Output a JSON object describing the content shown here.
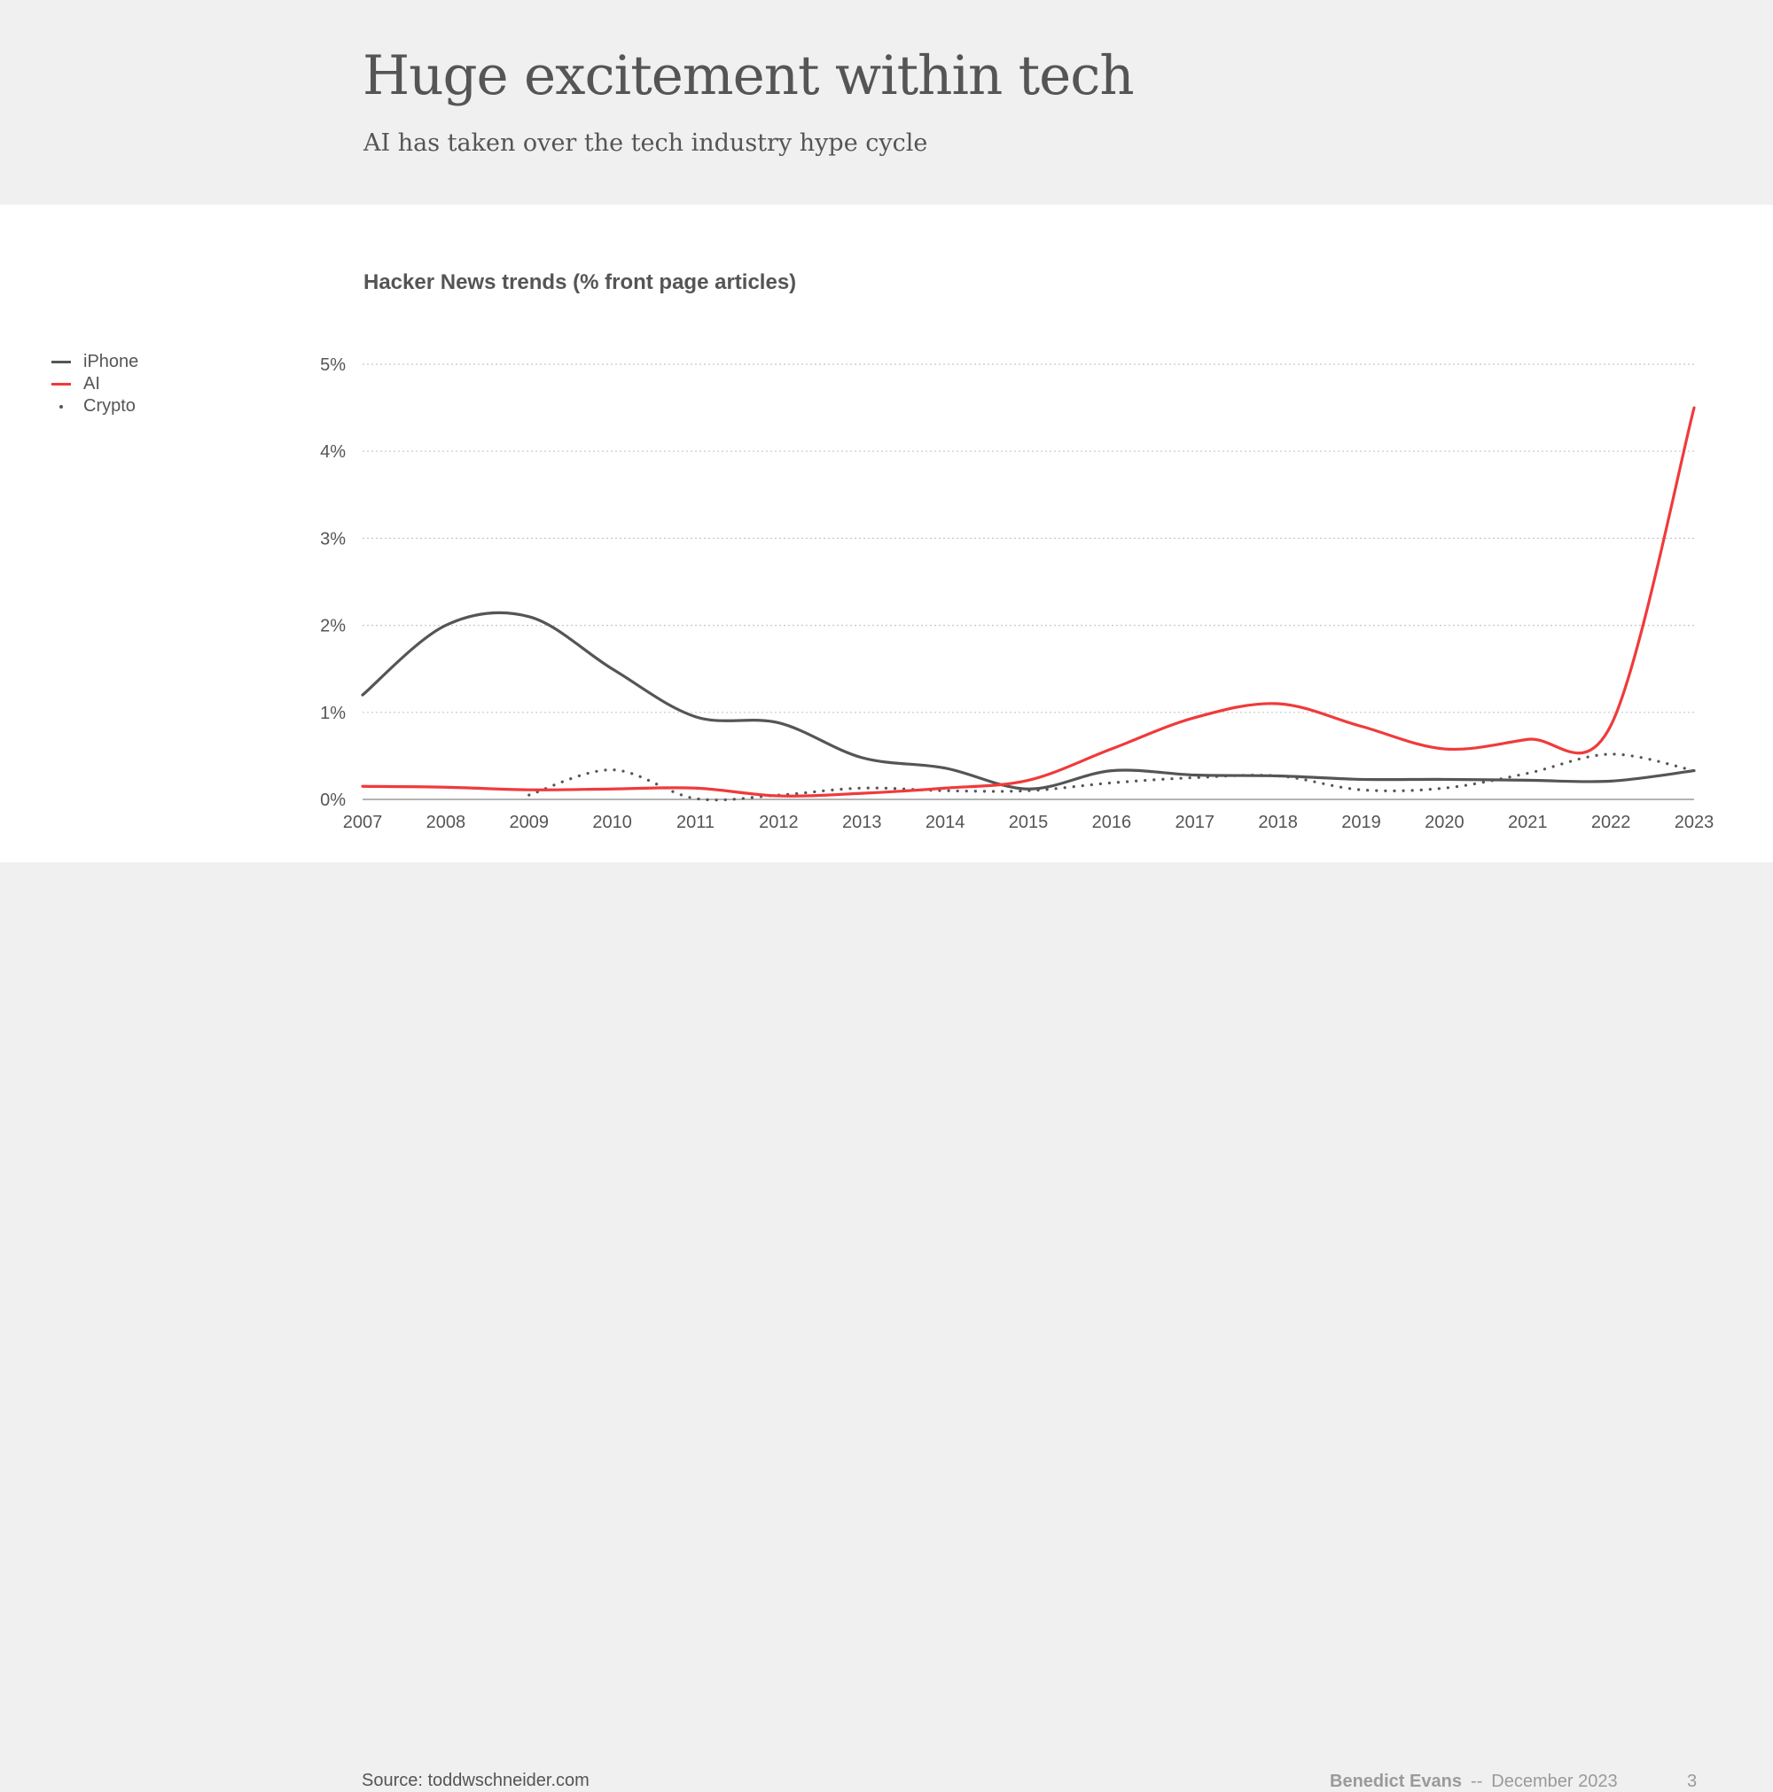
{
  "slide": {
    "title": "Huge excitement within tech",
    "subtitle": "AI has taken over the tech industry hype cycle",
    "source": "Source: toddwschneider.com",
    "author": "Benedict Evans",
    "separator": "--",
    "date": "December 2023",
    "page_number": "3"
  },
  "chart_data": {
    "type": "line",
    "title": "Hacker News trends (% front page articles)",
    "xlabel": "",
    "ylabel": "",
    "x": [
      2007,
      2008,
      2009,
      2010,
      2011,
      2012,
      2013,
      2014,
      2015,
      2016,
      2017,
      2018,
      2019,
      2020,
      2021,
      2022,
      2023
    ],
    "ylim": [
      0,
      5
    ],
    "yticks": [
      "0%",
      "1%",
      "2%",
      "3%",
      "4%",
      "5%"
    ],
    "ytick_values": [
      0,
      1,
      2,
      3,
      4,
      5
    ],
    "grid": true,
    "legend_position": "top-left",
    "series": [
      {
        "name": "iPhone",
        "color": "#555555",
        "style": "solid",
        "values": [
          1.2,
          2.0,
          2.1,
          1.5,
          0.95,
          0.88,
          0.48,
          0.36,
          0.12,
          0.33,
          0.28,
          0.27,
          0.23,
          0.23,
          0.22,
          0.21,
          0.33
        ]
      },
      {
        "name": "AI",
        "color": "#f03a3a",
        "style": "solid",
        "values": [
          0.15,
          0.14,
          0.11,
          0.12,
          0.13,
          0.04,
          0.07,
          0.13,
          0.22,
          0.58,
          0.94,
          1.1,
          0.84,
          0.58,
          0.69,
          0.85,
          4.5
        ]
      },
      {
        "name": "Crypto",
        "color": "#555555",
        "style": "dotted",
        "x": [
          2009,
          2010,
          2011,
          2012,
          2013,
          2014,
          2015,
          2016,
          2017,
          2018,
          2019,
          2020,
          2021,
          2022,
          2023
        ],
        "values": [
          0.05,
          0.34,
          0.01,
          0.05,
          0.13,
          0.1,
          0.1,
          0.19,
          0.25,
          0.27,
          0.11,
          0.13,
          0.3,
          0.52,
          0.33
        ]
      }
    ]
  }
}
